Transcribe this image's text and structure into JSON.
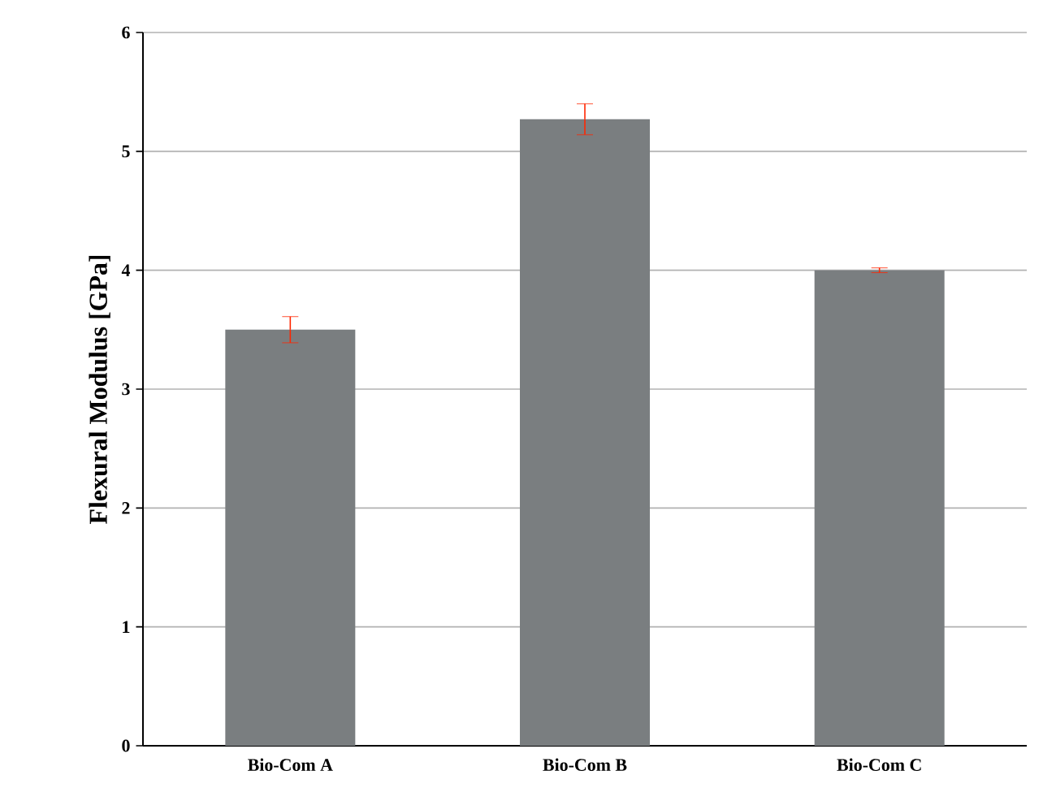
{
  "chart_data": {
    "type": "bar",
    "ylabel": "Flexural Modulus [GPa]",
    "categories": [
      "Bio-Com A",
      "Bio-Com B",
      "Bio-Com C"
    ],
    "values": [
      3.5,
      5.27,
      4.0
    ],
    "color": "#7a7e80",
    "errors": [
      0.11,
      0.13,
      0.02
    ],
    "ylim": [
      0,
      6
    ],
    "yticks": [
      0,
      1,
      2,
      3,
      4,
      5,
      6
    ],
    "grid": "y"
  }
}
